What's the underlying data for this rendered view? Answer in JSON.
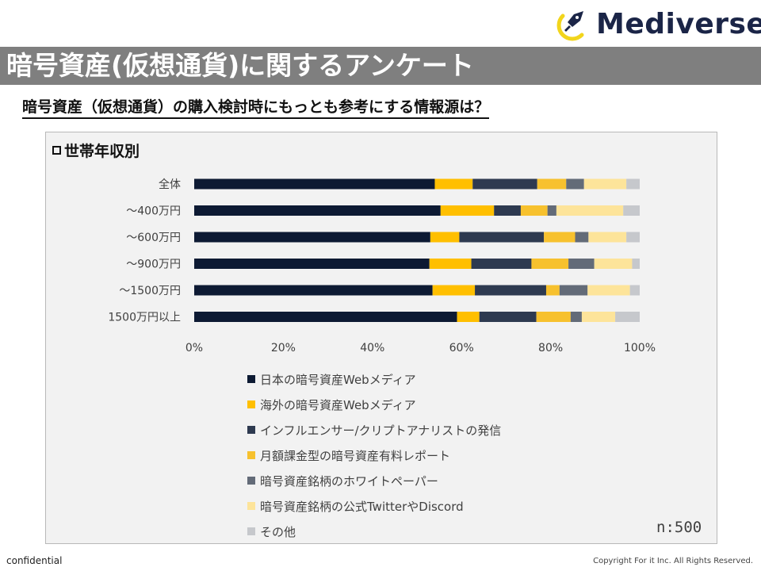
{
  "brand": {
    "name": "Mediverse",
    "accent": "#f2d51c",
    "dark": "#1b2547"
  },
  "header": {
    "title": "暗号資産(仮想通貨)に関するアンケート",
    "subtitle": "暗号資産（仮想通貨）の購入検討時にもっとも参考にする情報源は？"
  },
  "section": {
    "label": "世帯年収別"
  },
  "chart_data": {
    "type": "bar",
    "orientation": "horizontal",
    "stacked": true,
    "categories": [
      "全体",
      "～400万円",
      "～600万円",
      "～900万円",
      "～1500万円",
      "1500万円以上"
    ],
    "xlim": [
      0,
      100
    ],
    "xticks": [
      "0%",
      "20%",
      "40%",
      "60%",
      "80%",
      "100%"
    ],
    "series": [
      {
        "name": "日本の暗号資産Webメディア",
        "color": "#0d1a33",
        "values": [
          54,
          55.3,
          53,
          52.8,
          53.5,
          59
        ]
      },
      {
        "name": "海外の暗号資産Webメディア",
        "color": "#ffbf00",
        "values": [
          8.5,
          12,
          6.5,
          9.4,
          9.5,
          5
        ]
      },
      {
        "name": "インフルエンサー/クリプトアナリストの発信",
        "color": "#2e3a50",
        "values": [
          14.5,
          6,
          19,
          13.5,
          16,
          12.8
        ]
      },
      {
        "name": "月額課金型の暗号資産有料レポート",
        "color": "#f7c12e",
        "values": [
          6.5,
          6,
          7,
          8.3,
          3,
          7.7
        ]
      },
      {
        "name": "暗号資産銘柄のホワイトペーパー",
        "color": "#636b78",
        "values": [
          4,
          2,
          3,
          5.8,
          6.3,
          2.5
        ]
      },
      {
        "name": "暗号資産銘柄の公式TwitterやDiscord",
        "color": "#fde49a",
        "values": [
          9.5,
          15,
          8.5,
          8.5,
          9.5,
          7.5
        ]
      },
      {
        "name": "その他",
        "color": "#c6c8cc",
        "values": [
          3,
          3.7,
          3,
          1.7,
          2.2,
          5.5
        ]
      }
    ],
    "note": "n:500"
  },
  "footer": {
    "left": "confidential",
    "right": "Copyright For it Inc. All Rights Reserved."
  }
}
